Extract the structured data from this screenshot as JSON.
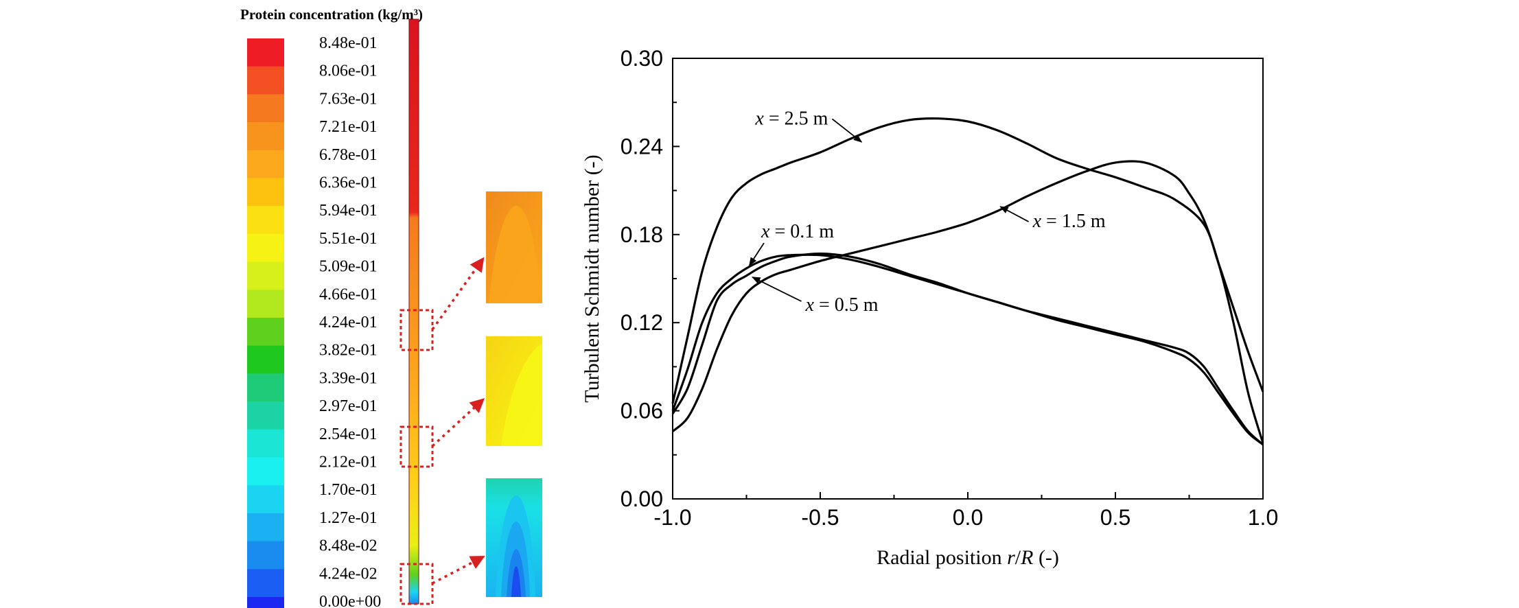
{
  "colorbar": {
    "title": "Protein concentration (kg/m³)",
    "labels": [
      "8.48e-01",
      "8.06e-01",
      "7.63e-01",
      "7.21e-01",
      "6.78e-01",
      "6.36e-01",
      "5.94e-01",
      "5.51e-01",
      "5.09e-01",
      "4.66e-01",
      "4.24e-01",
      "3.82e-01",
      "3.39e-01",
      "2.97e-01",
      "2.54e-01",
      "2.12e-01",
      "1.70e-01",
      "1.27e-01",
      "8.48e-02",
      "4.24e-02",
      "0.00e+00"
    ],
    "colors": [
      "#ee1c24",
      "#f25022",
      "#f57a1f",
      "#f7941d",
      "#fba81c",
      "#fdc210",
      "#fbe012",
      "#f6f314",
      "#d8f01a",
      "#b2e81e",
      "#5ed11e",
      "#1ec81e",
      "#1fca77",
      "#1cd3a4",
      "#1be6d6",
      "#1af0f0",
      "#1ad4f2",
      "#1bb0f0",
      "#1a8cf0",
      "#1a5ef4",
      "#1a28f0"
    ],
    "insets": [
      {
        "name": "upper",
        "colors": [
          "#f7941d",
          "#fba81c"
        ]
      },
      {
        "name": "middle",
        "colors": [
          "#fbe012",
          "#f6f314"
        ]
      },
      {
        "name": "lower",
        "colors": [
          "#1be6d6",
          "#1ad4f2",
          "#1a8cf0"
        ]
      }
    ]
  },
  "chart_data": {
    "type": "line",
    "title": "",
    "xlabel": "Radial position r/R (-)",
    "ylabel": "Turbulent Schmidt number (-)",
    "xlim": [
      -1.0,
      1.0
    ],
    "ylim": [
      0.0,
      0.3
    ],
    "xticks": [
      "-1.0",
      "-0.5",
      "0.0",
      "0.5",
      "1.0"
    ],
    "yticks": [
      "0.00",
      "0.06",
      "0.12",
      "0.18",
      "0.24",
      "0.30"
    ],
    "grid": false,
    "line_color": "#000000",
    "series": [
      {
        "name": "x = 2.5 m",
        "x": [
          -1.0,
          -0.95,
          -0.9,
          -0.85,
          -0.8,
          -0.75,
          -0.7,
          -0.65,
          -0.6,
          -0.5,
          -0.4,
          -0.3,
          -0.2,
          -0.1,
          0.0,
          0.1,
          0.2,
          0.3,
          0.4,
          0.5,
          0.6,
          0.7,
          0.8,
          0.85,
          0.9,
          0.95,
          1.0
        ],
        "y": [
          0.065,
          0.11,
          0.155,
          0.185,
          0.205,
          0.215,
          0.221,
          0.225,
          0.229,
          0.236,
          0.245,
          0.253,
          0.258,
          0.259,
          0.257,
          0.251,
          0.242,
          0.232,
          0.225,
          0.219,
          0.212,
          0.204,
          0.187,
          0.16,
          0.13,
          0.1,
          0.073
        ]
      },
      {
        "name": "x = 1.5 m",
        "x": [
          -1.0,
          -0.95,
          -0.9,
          -0.85,
          -0.8,
          -0.75,
          -0.7,
          -0.65,
          -0.6,
          -0.5,
          -0.4,
          -0.3,
          -0.2,
          -0.1,
          0.0,
          0.1,
          0.2,
          0.3,
          0.4,
          0.5,
          0.6,
          0.7,
          0.75,
          0.8,
          0.85,
          0.9,
          0.95,
          1.0
        ],
        "y": [
          0.046,
          0.055,
          0.075,
          0.102,
          0.125,
          0.14,
          0.148,
          0.153,
          0.156,
          0.162,
          0.167,
          0.172,
          0.177,
          0.182,
          0.188,
          0.196,
          0.206,
          0.215,
          0.223,
          0.229,
          0.229,
          0.22,
          0.208,
          0.19,
          0.16,
          0.12,
          0.072,
          0.038
        ]
      },
      {
        "name": "x = 0.1 m",
        "x": [
          -1.0,
          -0.95,
          -0.9,
          -0.85,
          -0.8,
          -0.75,
          -0.7,
          -0.65,
          -0.6,
          -0.5,
          -0.4,
          -0.3,
          -0.2,
          -0.1,
          0.0,
          0.1,
          0.2,
          0.3,
          0.4,
          0.5,
          0.6,
          0.7,
          0.75,
          0.8,
          0.85,
          0.9,
          0.95,
          1.0
        ],
        "y": [
          0.06,
          0.088,
          0.12,
          0.14,
          0.15,
          0.157,
          0.162,
          0.165,
          0.166,
          0.166,
          0.163,
          0.158,
          0.152,
          0.146,
          0.14,
          0.134,
          0.128,
          0.123,
          0.118,
          0.113,
          0.108,
          0.103,
          0.099,
          0.09,
          0.075,
          0.06,
          0.046,
          0.037
        ]
      },
      {
        "name": "x = 0.5 m",
        "x": [
          -1.0,
          -0.95,
          -0.9,
          -0.85,
          -0.8,
          -0.75,
          -0.7,
          -0.65,
          -0.6,
          -0.5,
          -0.4,
          -0.3,
          -0.2,
          -0.1,
          0.0,
          0.1,
          0.2,
          0.3,
          0.4,
          0.5,
          0.6,
          0.7,
          0.75,
          0.8,
          0.85,
          0.9,
          0.95,
          1.0
        ],
        "y": [
          0.058,
          0.075,
          0.105,
          0.135,
          0.146,
          0.152,
          0.158,
          0.162,
          0.165,
          0.167,
          0.165,
          0.16,
          0.153,
          0.147,
          0.14,
          0.134,
          0.128,
          0.122,
          0.117,
          0.112,
          0.107,
          0.1,
          0.095,
          0.086,
          0.072,
          0.058,
          0.045,
          0.037
        ]
      }
    ],
    "annotations": [
      {
        "series": "x = 2.5 m",
        "var": "x",
        "rest": " = 2.5 m"
      },
      {
        "series": "x = 1.5 m",
        "var": "x",
        "rest": " = 1.5 m"
      },
      {
        "series": "x = 0.1 m",
        "var": "x",
        "rest": " = 0.1 m"
      },
      {
        "series": "x = 0.5 m",
        "var": "x",
        "rest": " = 0.5 m"
      }
    ]
  }
}
